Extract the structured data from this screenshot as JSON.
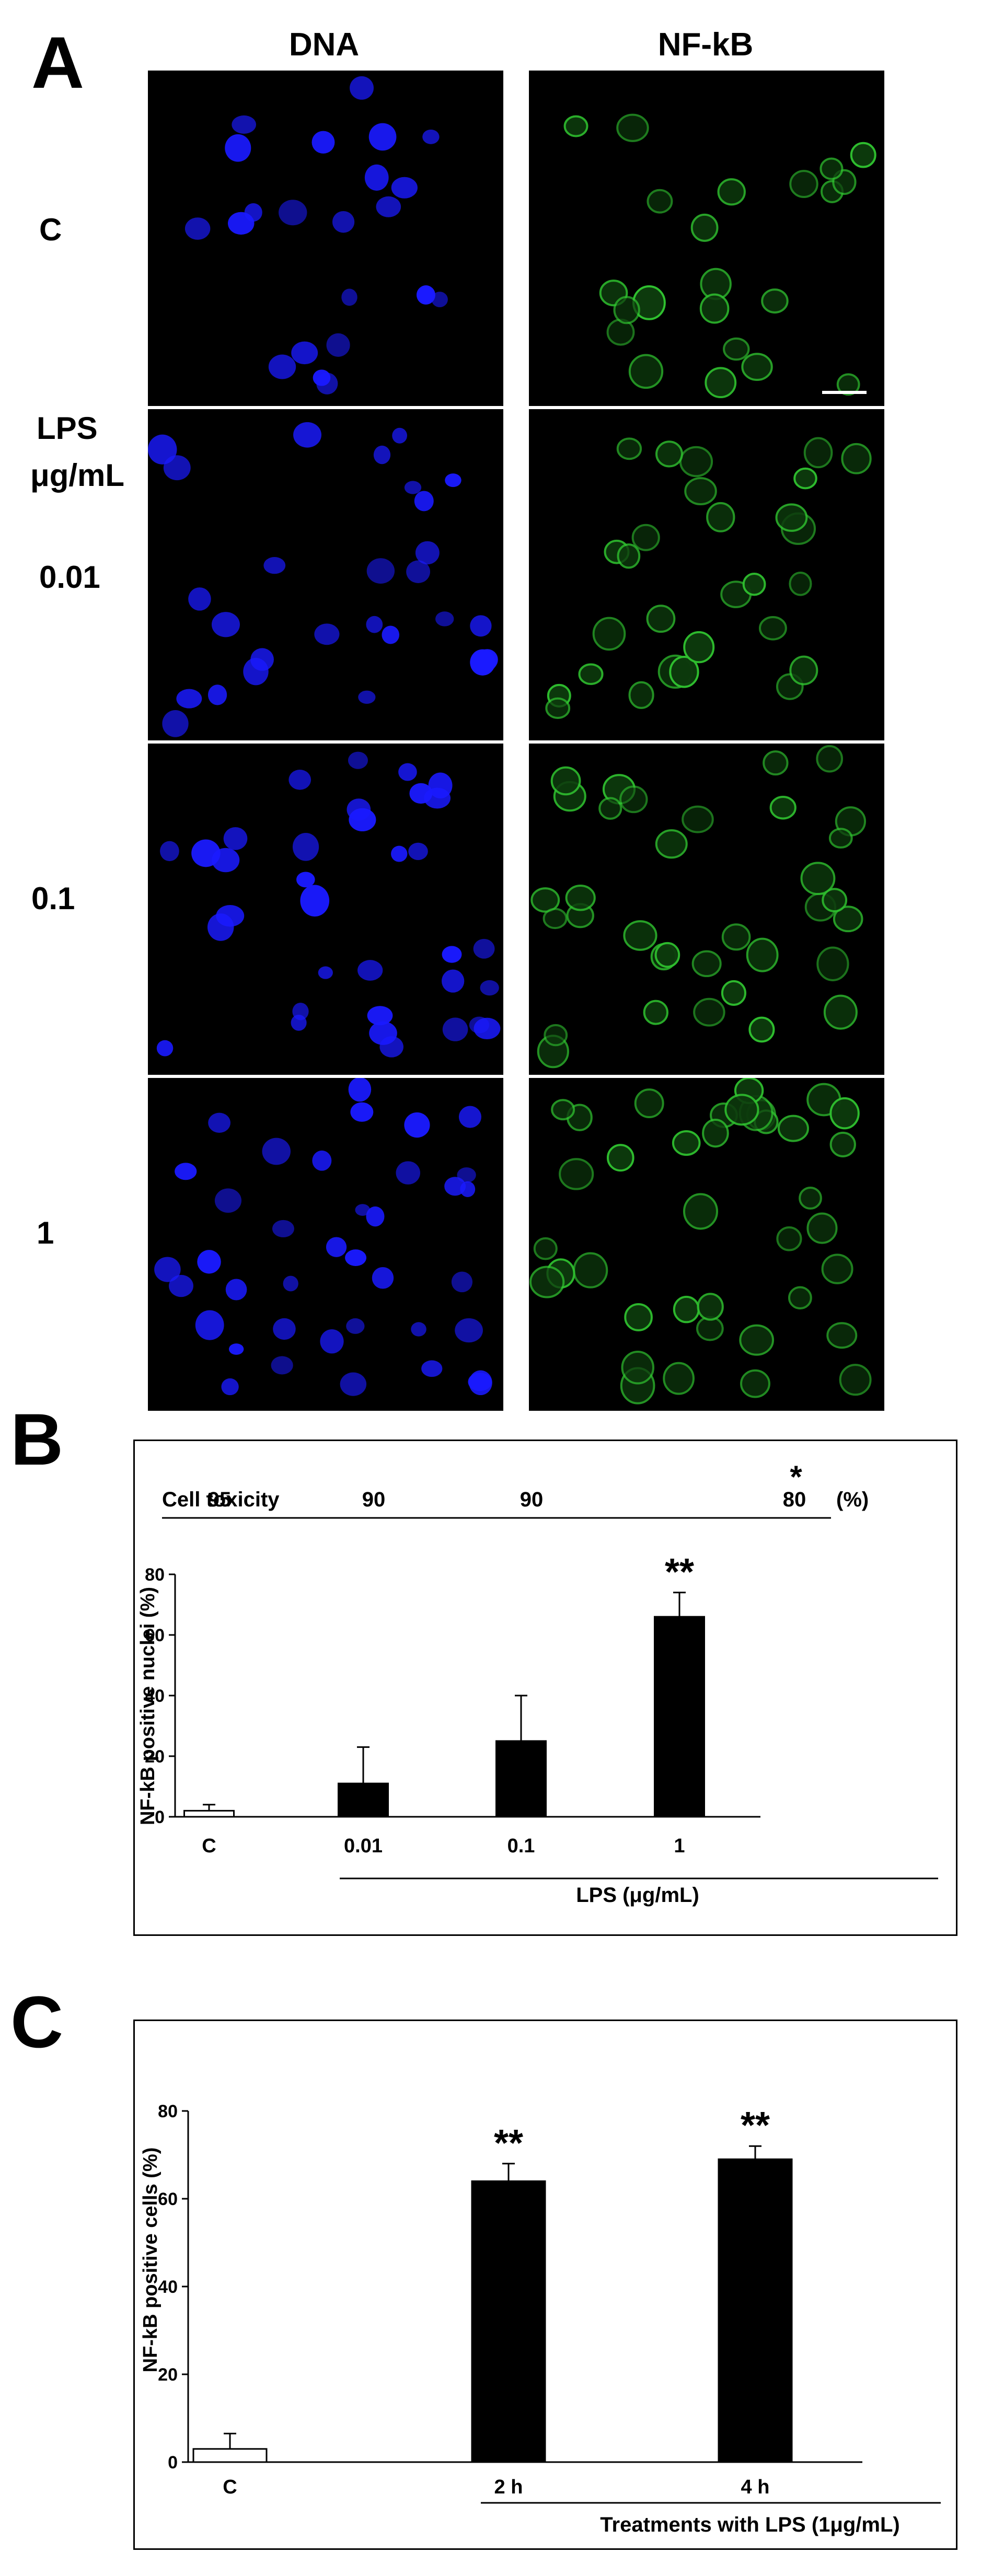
{
  "panel_a": {
    "letter": "A",
    "columns": [
      "DNA",
      "NF-kB"
    ],
    "rows": [
      {
        "label": "C"
      },
      {
        "label_line1": "LPS",
        "label_line2": "μg/mL",
        "label_line3": "0.01"
      },
      {
        "label": "0.1"
      },
      {
        "label": "1"
      }
    ],
    "channel_colors": {
      "dna": "#1a1aff",
      "nfkb": "#2fbf2f"
    },
    "scale_bar": "white scale bar"
  },
  "panel_b": {
    "letter": "B",
    "toxicity_label": "Cell toxicity",
    "toxicity_values": [
      "95",
      "90",
      "90",
      "80"
    ],
    "toxicity_unit": "(%)",
    "toxicity_star": "*",
    "ylabel": "NF-kB positive nuclei (%)",
    "group_label": "LPS (μg/mL)"
  },
  "panel_c": {
    "letter": "C",
    "ylabel": "NF-kB positive cells (%)",
    "group_label": "Treatments with LPS (1μg/mL)"
  },
  "chart_data": [
    {
      "type": "bar",
      "panel": "B",
      "categories": [
        "C",
        "0.01",
        "0.1",
        "1"
      ],
      "values": [
        2,
        11,
        25,
        66
      ],
      "errors": [
        2,
        12,
        15,
        8
      ],
      "bar_fills": [
        "#ffffff",
        "#000000",
        "#000000",
        "#000000"
      ],
      "significance": [
        "",
        "",
        "",
        "**"
      ],
      "xlabel": "LPS (μg/mL)",
      "ylabel": "NF-kB positive nuclei (%)",
      "ylim": [
        0,
        80
      ],
      "yticks": [
        0,
        20,
        40,
        60,
        80
      ],
      "grid": false,
      "legend": "none"
    },
    {
      "type": "bar",
      "panel": "C",
      "categories": [
        "C",
        "2 h",
        "4 h"
      ],
      "values": [
        3,
        64,
        69
      ],
      "errors": [
        3.5,
        4,
        3
      ],
      "bar_fills": [
        "#ffffff",
        "#000000",
        "#000000"
      ],
      "significance": [
        "",
        "**",
        "**"
      ],
      "xlabel": "Treatments with LPS (1μg/mL)",
      "ylabel": "NF-kB positive cells (%)",
      "ylim": [
        0,
        80
      ],
      "yticks": [
        0,
        20,
        40,
        60,
        80
      ],
      "grid": false,
      "legend": "none"
    }
  ]
}
